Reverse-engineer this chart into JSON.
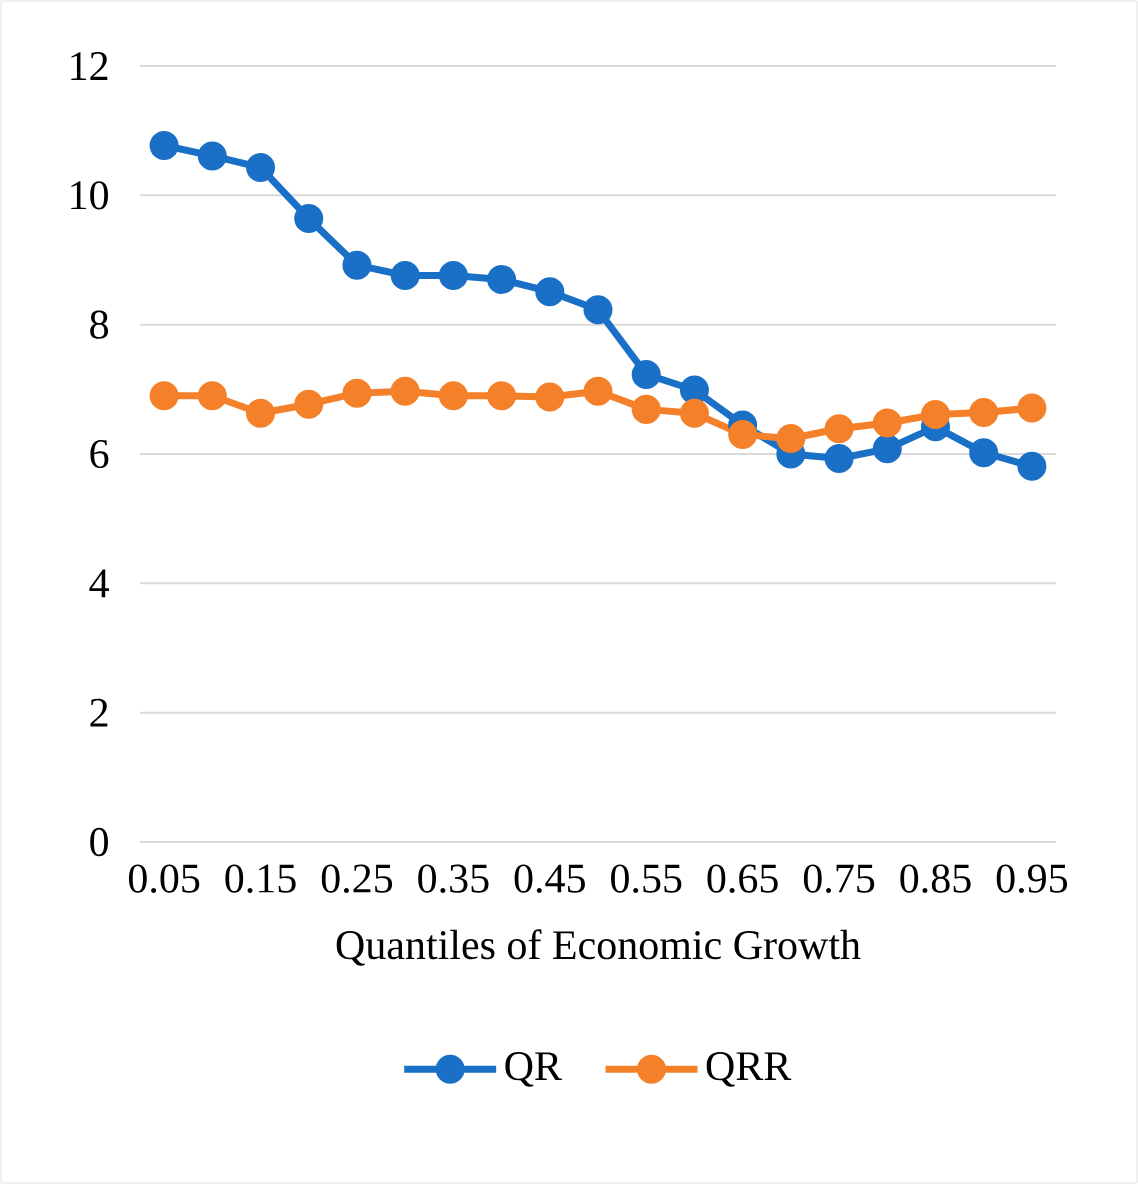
{
  "chart_data": {
    "type": "line",
    "xlabel": "Quantiles of Economic Growth",
    "categories": [
      "0.05",
      null,
      "0.15",
      null,
      "0.25",
      null,
      "0.35",
      null,
      "0.45",
      null,
      "0.55",
      null,
      "0.65",
      null,
      "0.75",
      null,
      "0.85",
      null,
      "0.95"
    ],
    "series": [
      {
        "name": "QR",
        "color": "#1a6fc6",
        "values": [
          10.77,
          10.61,
          10.43,
          9.64,
          8.92,
          8.76,
          8.76,
          8.7,
          8.51,
          8.23,
          7.23,
          6.99,
          6.45,
          6.0,
          5.93,
          6.08,
          6.42,
          6.02,
          5.81
        ]
      },
      {
        "name": "QRR",
        "color": "#f5802a",
        "values": [
          6.9,
          6.9,
          6.63,
          6.77,
          6.94,
          6.97,
          6.9,
          6.9,
          6.88,
          6.97,
          6.69,
          6.63,
          6.3,
          6.24,
          6.39,
          6.48,
          6.61,
          6.64,
          6.71
        ]
      }
    ],
    "ylim": [
      0,
      12
    ],
    "yticks": [
      0,
      2,
      4,
      6,
      8,
      10,
      12
    ],
    "grid": "y",
    "legend": "bottom",
    "marker": "circle",
    "line_style": "solid"
  }
}
